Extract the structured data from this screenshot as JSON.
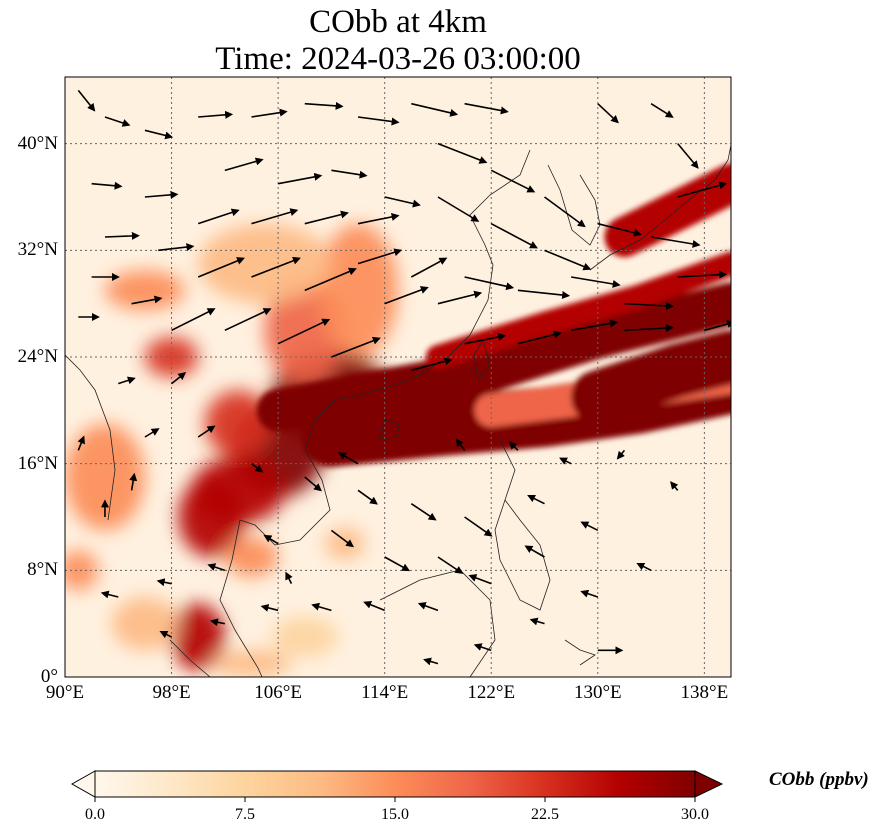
{
  "title_line1": "CObb at 4km",
  "title_line2": "Time: 2024-03-26 03:00:00",
  "map": {
    "lon_range": [
      90,
      140
    ],
    "lat_range": [
      0,
      45
    ],
    "lon_ticks": [
      {
        "value": 90,
        "label": "90°E"
      },
      {
        "value": 98,
        "label": "98°E"
      },
      {
        "value": 106,
        "label": "106°E"
      },
      {
        "value": 114,
        "label": "114°E"
      },
      {
        "value": 122,
        "label": "122°E"
      },
      {
        "value": 130,
        "label": "130°E"
      },
      {
        "value": 138,
        "label": "138°E"
      }
    ],
    "lat_ticks": [
      {
        "value": 0,
        "label": "0°"
      },
      {
        "value": 8,
        "label": "8°N"
      },
      {
        "value": 16,
        "label": "16°N"
      },
      {
        "value": 24,
        "label": "24°N"
      },
      {
        "value": 32,
        "label": "32°N"
      },
      {
        "value": 40,
        "label": "40°N"
      }
    ],
    "gridlines": true,
    "background_color": "#fff1e0",
    "plumes": [
      {
        "lon": 110,
        "lat": 21,
        "rx": 4.5,
        "ry": 3.5,
        "value": 30
      },
      {
        "lon": 106,
        "lat": 17,
        "rx": 3.5,
        "ry": 3.5,
        "value": 30
      },
      {
        "lon": 103,
        "lat": 14,
        "rx": 3.5,
        "ry": 2.5,
        "value": 28
      },
      {
        "lon": 101,
        "lat": 12,
        "rx": 2.5,
        "ry": 3,
        "value": 26
      },
      {
        "lon": 100,
        "lat": 3,
        "rx": 2,
        "ry": 2.5,
        "value": 26
      },
      {
        "lon": 103,
        "lat": 19,
        "rx": 2.5,
        "ry": 2.5,
        "value": 22
      },
      {
        "lon": 108,
        "lat": 26,
        "rx": 3,
        "ry": 4,
        "value": 20
      },
      {
        "lon": 112,
        "lat": 29,
        "rx": 3,
        "ry": 5,
        "value": 14
      },
      {
        "lon": 105,
        "lat": 31,
        "rx": 5,
        "ry": 3,
        "value": 10
      },
      {
        "lon": 98,
        "lat": 24,
        "rx": 2,
        "ry": 1.5,
        "value": 22
      },
      {
        "lon": 96,
        "lat": 29,
        "rx": 3,
        "ry": 1.5,
        "value": 14
      },
      {
        "lon": 93,
        "lat": 15,
        "rx": 3,
        "ry": 4,
        "value": 14
      },
      {
        "lon": 91,
        "lat": 8,
        "rx": 1.5,
        "ry": 1.5,
        "value": 16
      },
      {
        "lon": 96,
        "lat": 4,
        "rx": 2.5,
        "ry": 2,
        "value": 12
      },
      {
        "lon": 111,
        "lat": 10,
        "rx": 1.5,
        "ry": 1.2,
        "value": 12
      },
      {
        "lon": 104,
        "lat": 9,
        "rx": 2,
        "ry": 1.5,
        "value": 14
      },
      {
        "lon": 104,
        "lat": 1,
        "rx": 3,
        "ry": 1,
        "value": 12
      },
      {
        "lon": 108,
        "lat": 3,
        "rx": 2.5,
        "ry": 1.5,
        "value": 8
      }
    ],
    "streaks": [
      {
        "points": [
          [
            106,
            20
          ],
          [
            114,
            21.5
          ],
          [
            122,
            23
          ],
          [
            130,
            25.5
          ],
          [
            140,
            28
          ]
        ],
        "width": 3.2,
        "value": 30
      },
      {
        "points": [
          [
            110,
            18
          ],
          [
            118,
            18.8
          ],
          [
            126,
            19.5
          ],
          [
            133,
            20.5
          ],
          [
            140,
            22
          ]
        ],
        "width": 4.5,
        "value": 30
      },
      {
        "points": [
          [
            118,
            24
          ],
          [
            126,
            26.5
          ],
          [
            133,
            28.5
          ],
          [
            140,
            31
          ]
        ],
        "width": 1.8,
        "value": 26
      },
      {
        "points": [
          [
            122,
            20
          ],
          [
            130,
            21
          ],
          [
            140,
            22.5
          ]
        ],
        "width": 2.5,
        "value": 20
      },
      {
        "points": [
          [
            132,
            33
          ],
          [
            136,
            35
          ],
          [
            140,
            37
          ]
        ],
        "width": 3,
        "value": 28
      },
      {
        "points": [
          [
            130,
            21
          ],
          [
            136,
            23
          ],
          [
            140,
            24
          ]
        ],
        "width": 4,
        "value": 30
      }
    ],
    "wind_arrows": [
      [
        91,
        44,
        1.2,
        -1.5
      ],
      [
        93,
        42,
        1.8,
        -0.6
      ],
      [
        96,
        41,
        2,
        -0.5
      ],
      [
        92,
        37,
        2.2,
        -0.2
      ],
      [
        96,
        36,
        2.4,
        0.2
      ],
      [
        93,
        33,
        2.5,
        0.1
      ],
      [
        97,
        32,
        2.6,
        0.3
      ],
      [
        92,
        30,
        2,
        0
      ],
      [
        95,
        28,
        2.2,
        0.4
      ],
      [
        91,
        27,
        1.5,
        0
      ],
      [
        100,
        42,
        2.5,
        0.2
      ],
      [
        104,
        42,
        2.6,
        0.4
      ],
      [
        108,
        43,
        2.8,
        -0.2
      ],
      [
        112,
        42,
        3,
        -0.4
      ],
      [
        102,
        38,
        2.8,
        0.8
      ],
      [
        106,
        37,
        3.2,
        0.6
      ],
      [
        110,
        38,
        2.6,
        -0.4
      ],
      [
        114,
        36,
        2.6,
        -0.6
      ],
      [
        100,
        34,
        3,
        1
      ],
      [
        104,
        34,
        3.4,
        1
      ],
      [
        108,
        34,
        3.2,
        0.8
      ],
      [
        112,
        34,
        3,
        0.6
      ],
      [
        100,
        30,
        3.4,
        1.4
      ],
      [
        104,
        30,
        3.6,
        1.4
      ],
      [
        108,
        29,
        3.8,
        1.6
      ],
      [
        112,
        31,
        3.2,
        1
      ],
      [
        98,
        26,
        3.2,
        1.6
      ],
      [
        102,
        26,
        3.4,
        1.6
      ],
      [
        106,
        25,
        3.8,
        1.8
      ],
      [
        110,
        24,
        3.6,
        1.4
      ],
      [
        116,
        43,
        3.4,
        -0.8
      ],
      [
        120,
        43,
        3.2,
        -0.6
      ],
      [
        118,
        40,
        3.6,
        -1.4
      ],
      [
        122,
        38,
        3.2,
        -1.6
      ],
      [
        118,
        36,
        3,
        -1.8
      ],
      [
        122,
        34,
        3.4,
        -1.8
      ],
      [
        126,
        36,
        3,
        -2.2
      ],
      [
        126,
        32,
        3.4,
        -1.4
      ],
      [
        120,
        30,
        3.6,
        -0.8
      ],
      [
        124,
        29,
        3.8,
        -0.4
      ],
      [
        128,
        30,
        3.6,
        -0.6
      ],
      [
        132,
        28,
        3.6,
        -0.2
      ],
      [
        130,
        34,
        3.2,
        -0.8
      ],
      [
        134,
        33,
        3.6,
        -0.6
      ],
      [
        136,
        30,
        3.6,
        0.2
      ],
      [
        132,
        26,
        3.6,
        0.2
      ],
      [
        128,
        26,
        3.4,
        0.6
      ],
      [
        124,
        25,
        3.2,
        0.8
      ],
      [
        120,
        25,
        3,
        0.6
      ],
      [
        116,
        23,
        3,
        0.8
      ],
      [
        136,
        36,
        3.6,
        1
      ],
      [
        136,
        40,
        1.5,
        -1.8
      ],
      [
        130,
        43,
        1.5,
        -1.4
      ],
      [
        134,
        43,
        1.6,
        -1
      ],
      [
        138,
        26,
        2.2,
        0.6
      ],
      [
        114,
        28,
        3.2,
        1.2
      ],
      [
        116,
        30,
        2.6,
        1.4
      ],
      [
        118,
        28,
        3.2,
        0.8
      ],
      [
        98,
        22,
        1,
        0.8
      ],
      [
        94,
        22,
        1.2,
        0.4
      ],
      [
        96,
        18,
        1,
        0.6
      ],
      [
        100,
        18,
        1.2,
        0.8
      ],
      [
        104,
        16,
        0.8,
        -0.6
      ],
      [
        108,
        15,
        1.2,
        -1
      ],
      [
        112,
        14,
        1.4,
        -1
      ],
      [
        116,
        13,
        1.8,
        -1.2
      ],
      [
        120,
        12,
        2,
        -1.4
      ],
      [
        110,
        11,
        1.6,
        -1.2
      ],
      [
        114,
        9,
        1.8,
        -1
      ],
      [
        118,
        9,
        1.8,
        -1.2
      ],
      [
        106,
        10,
        -1,
        0.6
      ],
      [
        102,
        8,
        -1.2,
        0.4
      ],
      [
        98,
        7,
        -1,
        0.2
      ],
      [
        94,
        6,
        -1.2,
        0.3
      ],
      [
        98,
        3,
        -0.8,
        0.4
      ],
      [
        102,
        4,
        -1,
        0.2
      ],
      [
        106,
        5,
        -1.2,
        0.3
      ],
      [
        110,
        5,
        -1.4,
        0.4
      ],
      [
        114,
        5,
        -1.5,
        0.6
      ],
      [
        118,
        5,
        -1.4,
        0.5
      ],
      [
        122,
        7,
        -1.6,
        0.6
      ],
      [
        126,
        9,
        -1.4,
        0.8
      ],
      [
        130,
        11,
        -1.2,
        0.6
      ],
      [
        126,
        13,
        -1.2,
        0.6
      ],
      [
        128,
        16,
        -0.8,
        0.4
      ],
      [
        124,
        17,
        -0.6,
        0.6
      ],
      [
        120,
        17,
        -0.6,
        0.8
      ],
      [
        132,
        17,
        -0.5,
        -0.6
      ],
      [
        136,
        14,
        -0.5,
        0.6
      ],
      [
        134,
        8,
        -1,
        0.5
      ],
      [
        130,
        6,
        -1.2,
        0.4
      ],
      [
        126,
        4,
        -1,
        0.3
      ],
      [
        122,
        2,
        -1.2,
        0.4
      ],
      [
        118,
        1,
        -1,
        0.3
      ],
      [
        130,
        2,
        1.8,
        0
      ],
      [
        93,
        12,
        0,
        1.2
      ],
      [
        95,
        14,
        0.2,
        1.2
      ],
      [
        91,
        17,
        0.4,
        1
      ],
      [
        107,
        7,
        -0.4,
        0.8
      ],
      [
        112,
        16,
        -1.4,
        0.8
      ]
    ]
  },
  "colorbar": {
    "label": "CObb (ppbv)",
    "vmin": 0,
    "vmax": 30,
    "extend": "both",
    "ticks": [
      {
        "value": 0,
        "label": "0.0"
      },
      {
        "value": 7.5,
        "label": "7.5"
      },
      {
        "value": 15,
        "label": "15.0"
      },
      {
        "value": 22.5,
        "label": "22.5"
      },
      {
        "value": 30,
        "label": "30.0"
      }
    ],
    "colors": [
      "#fff7ec",
      "#fee8c8",
      "#fdd49e",
      "#fdbb84",
      "#fc8d59",
      "#ef6548",
      "#d7301f",
      "#b30000",
      "#7f0000"
    ]
  }
}
